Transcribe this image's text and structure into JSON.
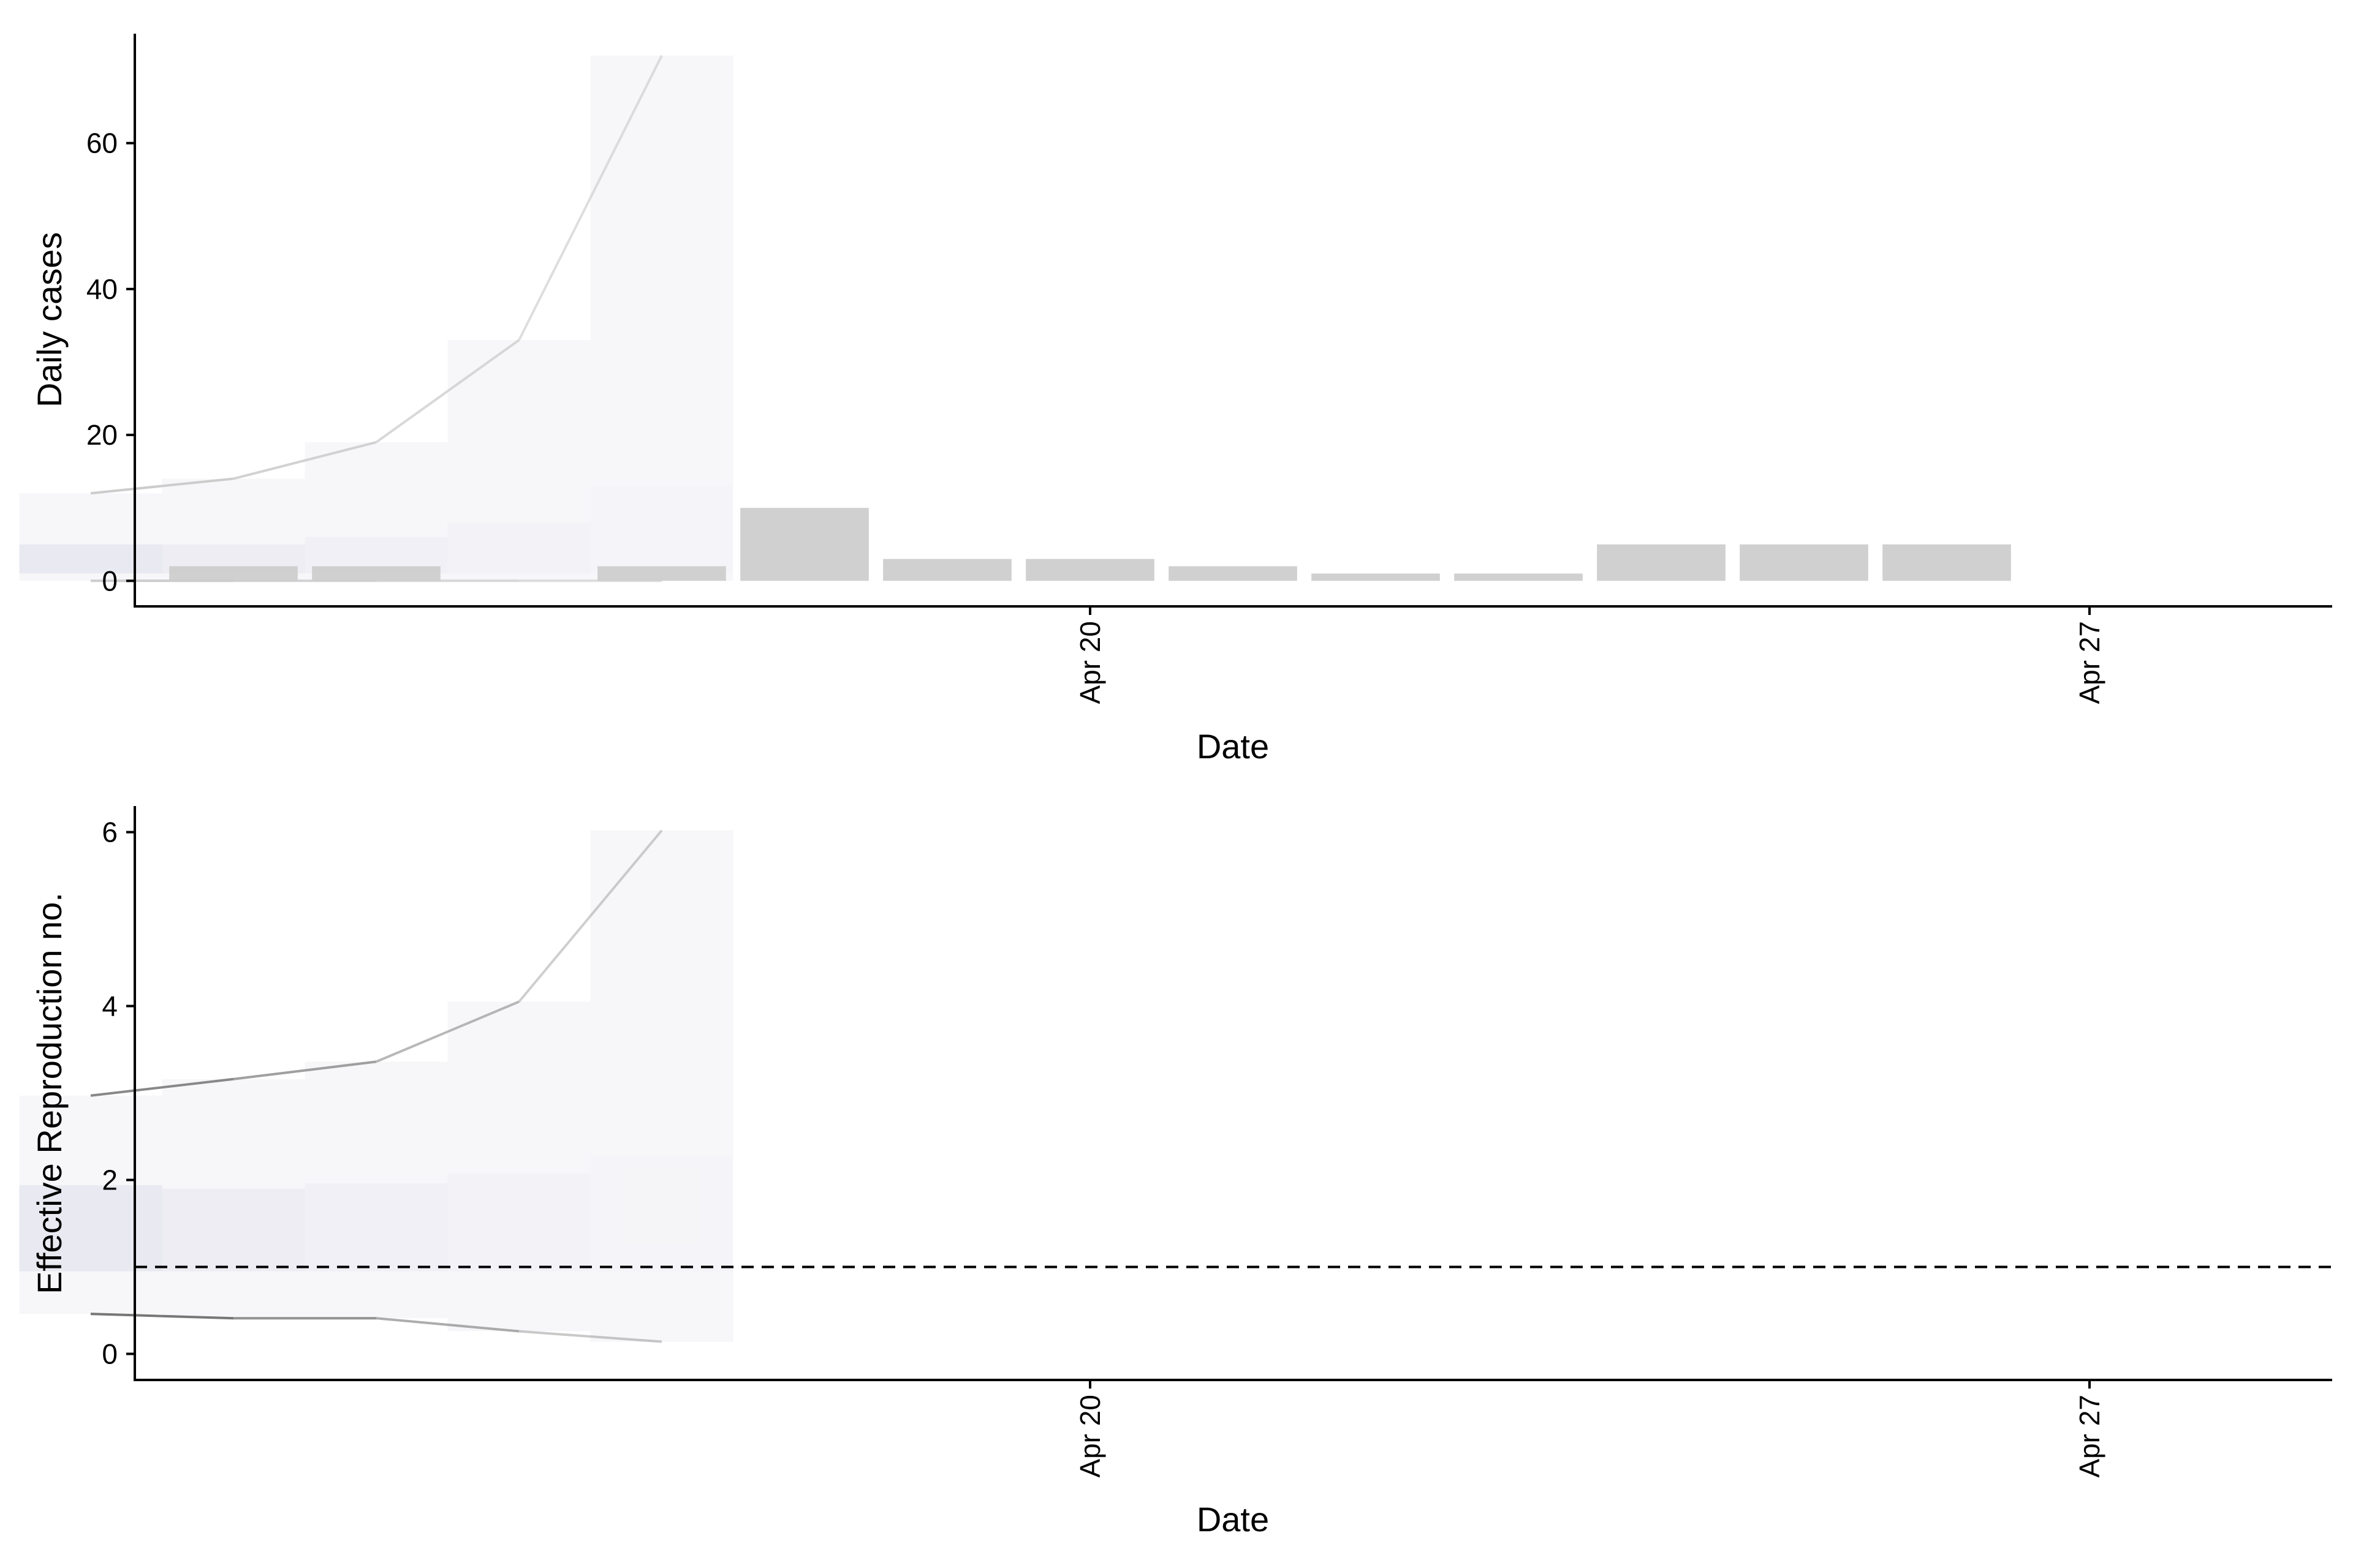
{
  "chart_data": [
    {
      "type": "bar",
      "xlabel": "Date",
      "ylabel": "Daily cases",
      "ylim": [
        -3.5,
        75
      ],
      "yticks": [
        0,
        20,
        40,
        60
      ],
      "xticks": [
        {
          "date": "2020-04-20",
          "label": "Apr 20"
        },
        {
          "date": "2020-04-27",
          "label": "Apr 27"
        }
      ],
      "grid": false,
      "bar_color": "#cccccc",
      "bars": [
        {
          "date": "2020-04-14",
          "value": 2
        },
        {
          "date": "2020-04-15",
          "value": 2
        },
        {
          "date": "2020-04-16",
          "value": 0
        },
        {
          "date": "2020-04-17",
          "value": 2
        },
        {
          "date": "2020-04-18",
          "value": 10
        },
        {
          "date": "2020-04-19",
          "value": 3
        },
        {
          "date": "2020-04-20",
          "value": 3
        },
        {
          "date": "2020-04-21",
          "value": 2
        },
        {
          "date": "2020-04-22",
          "value": 1
        },
        {
          "date": "2020-04-23",
          "value": 1
        },
        {
          "date": "2020-04-24",
          "value": 5
        },
        {
          "date": "2020-04-25",
          "value": 5
        },
        {
          "date": "2020-04-26",
          "value": 5
        }
      ],
      "bands": [
        {
          "date": "2020-04-13",
          "outer_lower": 0,
          "outer_upper": 12,
          "inner_lower": 1,
          "inner_upper": 5
        },
        {
          "date": "2020-04-14",
          "outer_lower": 0,
          "outer_upper": 14,
          "inner_lower": 1,
          "inner_upper": 5
        },
        {
          "date": "2020-04-15",
          "outer_lower": 0,
          "outer_upper": 19,
          "inner_lower": 1,
          "inner_upper": 6
        },
        {
          "date": "2020-04-16",
          "outer_lower": 0,
          "outer_upper": 33,
          "inner_lower": 1,
          "inner_upper": 8
        },
        {
          "date": "2020-04-17",
          "outer_lower": 0,
          "outer_upper": 72,
          "inner_lower": 1,
          "inner_upper": 13
        }
      ]
    },
    {
      "type": "area",
      "xlabel": "Date",
      "ylabel": "Effective Reproduction no.",
      "ylim": [
        -0.3,
        6.3
      ],
      "yticks": [
        0,
        2,
        4,
        6
      ],
      "xticks": [
        {
          "date": "2020-04-20",
          "label": "Apr 20"
        },
        {
          "date": "2020-04-27",
          "label": "Apr 27"
        }
      ],
      "grid": false,
      "reference_line": 1,
      "bands": [
        {
          "date": "2020-04-13",
          "outer_lower": 0.46,
          "outer_upper": 2.97,
          "inner_lower": 0.95,
          "inner_upper": 1.94
        },
        {
          "date": "2020-04-14",
          "outer_lower": 0.41,
          "outer_upper": 3.16,
          "inner_lower": 0.95,
          "inner_upper": 1.9
        },
        {
          "date": "2020-04-15",
          "outer_lower": 0.41,
          "outer_upper": 3.36,
          "inner_lower": 0.95,
          "inner_upper": 1.96
        },
        {
          "date": "2020-04-16",
          "outer_lower": 0.26,
          "outer_upper": 4.05,
          "inner_lower": 0.95,
          "inner_upper": 2.07
        },
        {
          "date": "2020-04-17",
          "outer_lower": 0.14,
          "outer_upper": 6.02,
          "inner_lower": 0.95,
          "inner_upper": 2.28
        }
      ]
    }
  ]
}
